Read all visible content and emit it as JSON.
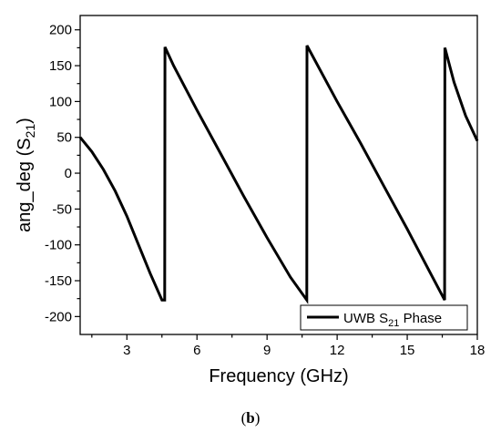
{
  "chart_data": {
    "type": "line",
    "title": "",
    "xlabel": "Frequency (GHz)",
    "ylabel": {
      "prefix": "ang_deg (S",
      "sub": "21",
      "suffix": ")"
    },
    "xlim": [
      1,
      18
    ],
    "ylim": [
      -225,
      220
    ],
    "x_ticks": [
      3,
      6,
      9,
      12,
      15,
      18
    ],
    "x_tick_labels": [
      "3",
      "6",
      "9",
      "12",
      "15",
      "18"
    ],
    "y_ticks": [
      -200,
      -150,
      -100,
      -50,
      0,
      50,
      100,
      150,
      200
    ],
    "y_tick_labels": [
      "-200",
      "-150",
      "-100",
      "-50",
      "0",
      "50",
      "100",
      "150",
      "200"
    ],
    "grid": false,
    "legend_position": "bottom-right",
    "series": [
      {
        "name": {
          "prefix": "UWB S",
          "sub": "21",
          "suffix": " Phase"
        },
        "color": "#000000",
        "x": [
          1.0,
          1.5,
          2.0,
          2.5,
          3.0,
          3.5,
          4.0,
          4.5,
          4.62,
          4.63,
          5.0,
          6.0,
          7.0,
          8.0,
          9.0,
          10.0,
          10.7,
          10.71,
          12.0,
          13.0,
          14.0,
          15.0,
          16.0,
          16.6,
          16.61,
          17.0,
          17.5,
          18.0
        ],
        "y": [
          50,
          30,
          5,
          -25,
          -60,
          -100,
          -140,
          -177,
          -177,
          176,
          150,
          88,
          28,
          -32,
          -90,
          -145,
          -177,
          178,
          100,
          42,
          -18,
          -78,
          -140,
          -177,
          175,
          127,
          80,
          45
        ]
      }
    ]
  },
  "caption": {
    "open": "(",
    "letter": "b",
    "close": ")"
  }
}
